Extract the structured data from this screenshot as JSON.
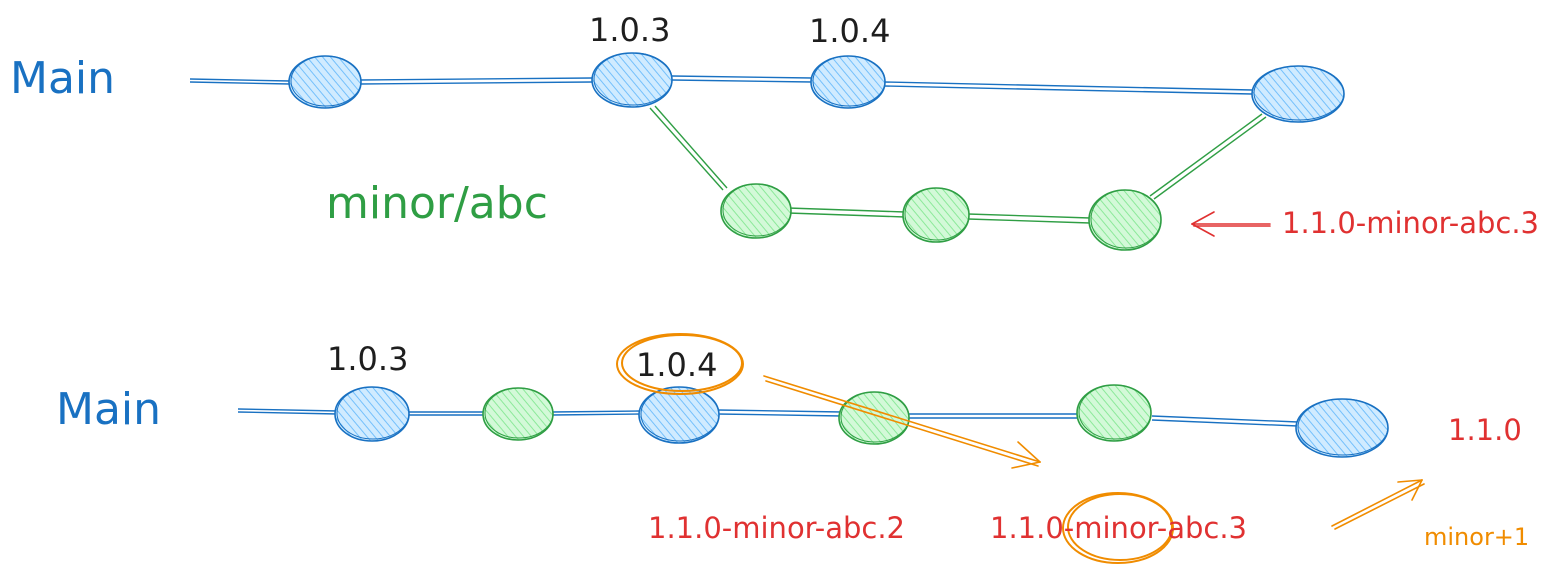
{
  "colors": {
    "main": "#1971c2",
    "main_fill": "#a5d8ff",
    "branch": "#2f9e44",
    "branch_fill": "#b2f2bb",
    "version_text": "#1e1e1e",
    "prerelease_text": "#e03131",
    "highlight": "#f08c00"
  },
  "top": {
    "main_label": "Main",
    "branch_label": "minor/abc",
    "tag_1": "1.0.3",
    "tag_2": "1.0.4",
    "current_version": "1.1.0-minor-abc.3"
  },
  "bottom": {
    "main_label": "Main",
    "tag_1": "1.0.3",
    "tag_2": "1.0.4",
    "prerelease_1": "1.1.0-minor-abc.2",
    "prerelease_2": "1.1.0-minor-abc.3",
    "result_version": "1.1.0",
    "bump_note": "minor+1"
  }
}
